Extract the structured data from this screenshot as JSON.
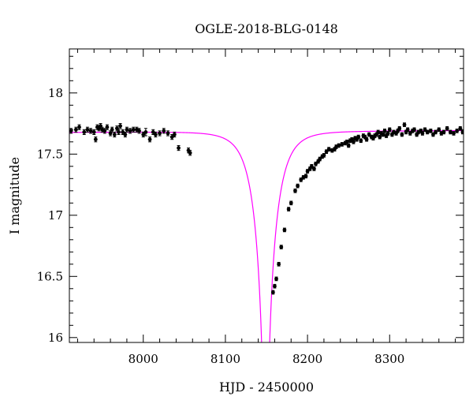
{
  "chart_data": {
    "type": "scatter",
    "title": "OGLE-2018-BLG-0148",
    "xlabel": "HJD - 2450000",
    "ylabel": "I magnitude",
    "xlim": [
      7910,
      8390
    ],
    "ylim": [
      18.36,
      15.96
    ],
    "y_inverted": true,
    "x_ticks": [
      8000,
      8100,
      8200,
      8300
    ],
    "x_tick_labels": [
      "8000",
      "8100",
      "8200",
      "8300"
    ],
    "y_ticks": [
      16,
      16.5,
      17,
      17.5,
      18
    ],
    "y_tick_labels": [
      "16",
      "16.5",
      "17",
      "17.5",
      "18"
    ],
    "grid": false,
    "colors": {
      "data": "#000000",
      "model": "#ff00ff",
      "axes": "#000000"
    },
    "model": {
      "name": "",
      "t0": 8149,
      "peak_mag": 15.6,
      "I_base": 17.685,
      "u0": 0.032,
      "tE": 24,
      "baseline_slope_per_day": 3e-05,
      "baseline_ref_day": 8150
    },
    "series": [
      {
        "name": "",
        "x": [
          7912,
          7918,
          7922,
          7928,
          7932,
          7936,
          7940,
          7942,
          7944,
          7946,
          7948,
          7950,
          7953,
          7956,
          7960,
          7962,
          7965,
          7968,
          7970,
          7972,
          7975,
          7978,
          7980,
          7984,
          7988,
          7992,
          7995,
          8000,
          8003,
          8008,
          8012,
          8015,
          8020,
          8025,
          8030,
          8035,
          8038,
          8043,
          8055,
          8057,
          8158,
          8160,
          8162,
          8165,
          8168,
          8172,
          8177,
          8180,
          8185,
          8188,
          8192,
          8195,
          8198,
          8200,
          8203,
          8205,
          8208,
          8210,
          8213,
          8215,
          8218,
          8220,
          8223,
          8226,
          8230,
          8233,
          8235,
          8238,
          8242,
          8246,
          8248,
          8250,
          8252,
          8254,
          8256,
          8258,
          8260,
          8262,
          8265,
          8268,
          8270,
          8272,
          8275,
          8278,
          8280,
          8282,
          8284,
          8286,
          8288,
          8290,
          8292,
          8294,
          8296,
          8298,
          8300,
          8303,
          8305,
          8308,
          8310,
          8312,
          8315,
          8318,
          8320,
          8322,
          8325,
          8328,
          8330,
          8333,
          8335,
          8338,
          8340,
          8343,
          8346,
          8350,
          8353,
          8356,
          8360,
          8363,
          8366,
          8370,
          8374,
          8378,
          8382,
          8386,
          8389
        ],
        "y": [
          17.69,
          17.7,
          17.72,
          17.68,
          17.7,
          17.69,
          17.68,
          17.62,
          17.72,
          17.71,
          17.73,
          17.7,
          17.69,
          17.72,
          17.67,
          17.7,
          17.66,
          17.71,
          17.68,
          17.73,
          17.68,
          17.66,
          17.7,
          17.69,
          17.7,
          17.7,
          17.69,
          17.66,
          17.68,
          17.62,
          17.68,
          17.66,
          17.67,
          17.69,
          17.67,
          17.64,
          17.66,
          17.55,
          17.53,
          17.51,
          16.37,
          16.42,
          16.48,
          16.6,
          16.74,
          16.88,
          17.05,
          17.1,
          17.2,
          17.24,
          17.29,
          17.31,
          17.32,
          17.36,
          17.38,
          17.4,
          17.38,
          17.42,
          17.44,
          17.46,
          17.48,
          17.49,
          17.52,
          17.54,
          17.53,
          17.54,
          17.56,
          17.57,
          17.58,
          17.59,
          17.6,
          17.57,
          17.61,
          17.62,
          17.6,
          17.63,
          17.62,
          17.64,
          17.61,
          17.65,
          17.64,
          17.62,
          17.66,
          17.64,
          17.63,
          17.65,
          17.66,
          17.68,
          17.64,
          17.67,
          17.66,
          17.69,
          17.65,
          17.67,
          17.7,
          17.66,
          17.68,
          17.67,
          17.69,
          17.71,
          17.66,
          17.74,
          17.68,
          17.7,
          17.67,
          17.69,
          17.7,
          17.66,
          17.68,
          17.69,
          17.67,
          17.7,
          17.68,
          17.69,
          17.66,
          17.68,
          17.7,
          17.67,
          17.68,
          17.71,
          17.68,
          17.67,
          17.69,
          17.71,
          17.68
        ],
        "err": [
          0.02,
          0.02,
          0.02,
          0.02,
          0.02,
          0.02,
          0.02,
          0.02,
          0.02,
          0.02,
          0.02,
          0.02,
          0.02,
          0.02,
          0.02,
          0.02,
          0.02,
          0.02,
          0.02,
          0.02,
          0.02,
          0.02,
          0.02,
          0.02,
          0.02,
          0.02,
          0.02,
          0.02,
          0.03,
          0.02,
          0.02,
          0.02,
          0.02,
          0.02,
          0.02,
          0.02,
          0.02,
          0.02,
          0.02,
          0.02,
          0.015,
          0.015,
          0.015,
          0.015,
          0.015,
          0.015,
          0.015,
          0.015,
          0.015,
          0.015,
          0.015,
          0.015,
          0.015,
          0.015,
          0.015,
          0.015,
          0.015,
          0.015,
          0.015,
          0.015,
          0.015,
          0.015,
          0.015,
          0.015,
          0.015,
          0.015,
          0.015,
          0.015,
          0.015,
          0.015,
          0.015,
          0.015,
          0.015,
          0.015,
          0.015,
          0.015,
          0.015,
          0.015,
          0.015,
          0.015,
          0.015,
          0.015,
          0.015,
          0.015,
          0.015,
          0.015,
          0.015,
          0.015,
          0.015,
          0.015,
          0.015,
          0.015,
          0.015,
          0.015,
          0.015,
          0.015,
          0.015,
          0.015,
          0.015,
          0.015,
          0.015,
          0.015,
          0.015,
          0.015,
          0.015,
          0.015,
          0.015,
          0.015,
          0.015,
          0.015,
          0.015,
          0.015,
          0.015,
          0.015,
          0.015,
          0.015,
          0.015,
          0.015,
          0.015,
          0.015,
          0.015,
          0.015,
          0.015,
          0.015,
          0.015
        ]
      }
    ]
  }
}
